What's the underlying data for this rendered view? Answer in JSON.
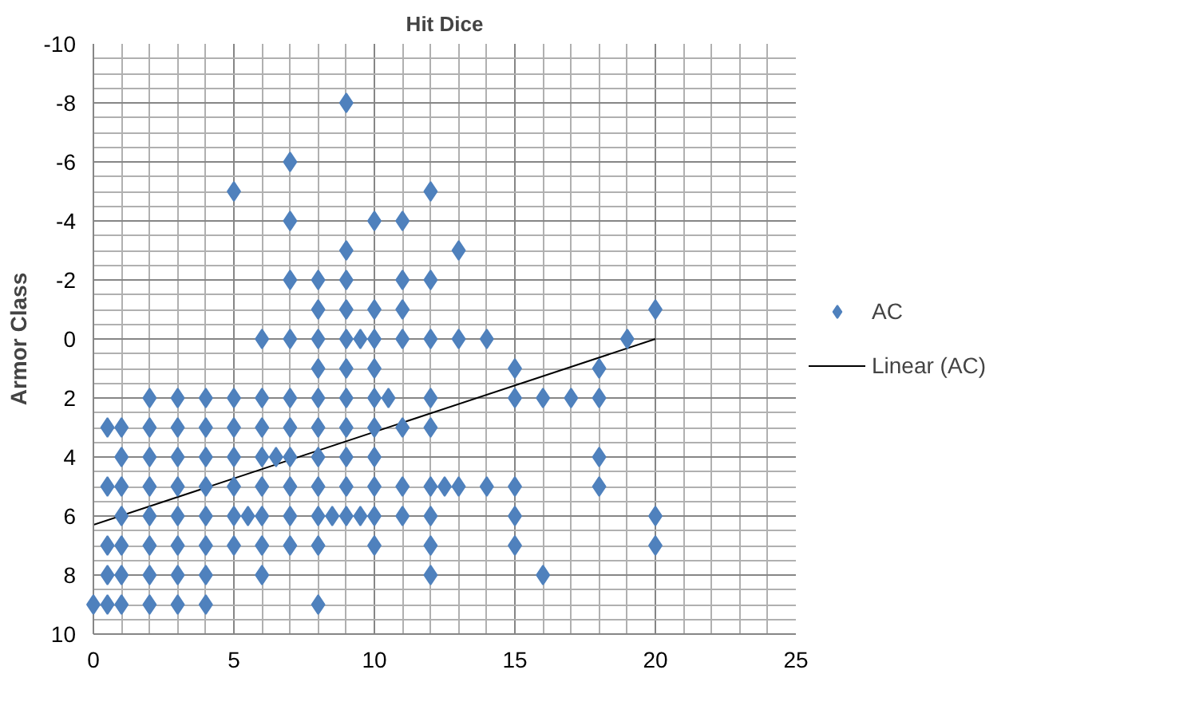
{
  "chart_data": {
    "type": "scatter",
    "title": "Hit Dice",
    "ylabel": "Armor Class",
    "xlim": [
      0,
      25
    ],
    "xticks": [
      0,
      5,
      10,
      15,
      20,
      25
    ],
    "ylim": [
      10,
      -10
    ],
    "yticks": [
      -10,
      -8,
      -6,
      -4,
      -2,
      0,
      2,
      4,
      6,
      8,
      10
    ],
    "grid": true,
    "legend": "right",
    "marker": "diamond",
    "series": [
      {
        "name": "AC",
        "color": "#4f81bd",
        "x": [
          9,
          7,
          5,
          12,
          7,
          10,
          11,
          9,
          13,
          7,
          8,
          9,
          11,
          12,
          8,
          9,
          10,
          11,
          20,
          6,
          7,
          8,
          9,
          9.5,
          10,
          11,
          12,
          13,
          14,
          19,
          8,
          9,
          10,
          15,
          18,
          2,
          3,
          4,
          5,
          6,
          7,
          8,
          9,
          10,
          10.5,
          12,
          15,
          16,
          17,
          18,
          0.5,
          1,
          2,
          3,
          4,
          5,
          6,
          7,
          8,
          9,
          10,
          11,
          12,
          1,
          2,
          3,
          4,
          5,
          6,
          6.5,
          7,
          8,
          9,
          10,
          18,
          0.5,
          1,
          2,
          3,
          4,
          5,
          6,
          7,
          8,
          9,
          10,
          11,
          12,
          12.5,
          13,
          14,
          15,
          18,
          1,
          2,
          3,
          4,
          5,
          5.5,
          6,
          7,
          8,
          8.5,
          9,
          9.5,
          10,
          11,
          12,
          15,
          20,
          0.5,
          1,
          2,
          3,
          4,
          5,
          6,
          7,
          8,
          10,
          12,
          15,
          20,
          0.5,
          1,
          2,
          3,
          4,
          6,
          12,
          16,
          0,
          0.5,
          1,
          2,
          3,
          4,
          8
        ],
        "values": [
          -8,
          -6,
          -5,
          -5,
          -4,
          -4,
          -4,
          -3,
          -3,
          -2,
          -2,
          -2,
          -2,
          -2,
          -1,
          -1,
          -1,
          -1,
          -1,
          0,
          0,
          0,
          0,
          0,
          0,
          0,
          0,
          0,
          0,
          0,
          1,
          1,
          1,
          1,
          1,
          2,
          2,
          2,
          2,
          2,
          2,
          2,
          2,
          2,
          2,
          2,
          2,
          2,
          2,
          2,
          3,
          3,
          3,
          3,
          3,
          3,
          3,
          3,
          3,
          3,
          3,
          3,
          3,
          4,
          4,
          4,
          4,
          4,
          4,
          4,
          4,
          4,
          4,
          4,
          4,
          5,
          5,
          5,
          5,
          5,
          5,
          5,
          5,
          5,
          5,
          5,
          5,
          5,
          5,
          5,
          5,
          5,
          5,
          6,
          6,
          6,
          6,
          6,
          6,
          6,
          6,
          6,
          6,
          6,
          6,
          6,
          6,
          6,
          6,
          6,
          7,
          7,
          7,
          7,
          7,
          7,
          7,
          7,
          7,
          7,
          7,
          7,
          7,
          8,
          8,
          8,
          8,
          8,
          8,
          8,
          8,
          9,
          9,
          9,
          9,
          9,
          9,
          9
        ]
      },
      {
        "name": "Linear (AC)",
        "color": "#000000",
        "type": "line",
        "marker": "none",
        "x": [
          0,
          20
        ],
        "values": [
          6.3,
          0
        ]
      }
    ]
  }
}
